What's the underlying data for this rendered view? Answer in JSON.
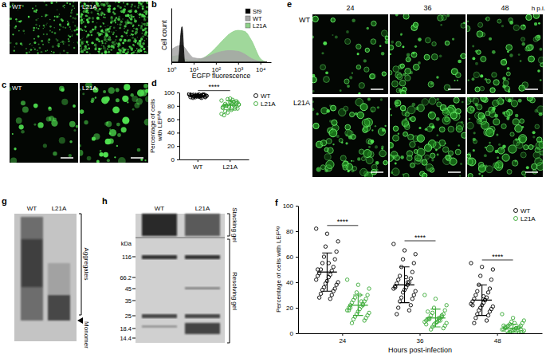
{
  "panel_labels": [
    "a",
    "b",
    "c",
    "d",
    "e",
    "f",
    "g",
    "h"
  ],
  "images": {
    "a": {
      "labels": [
        "WT",
        "L21A"
      ]
    },
    "c": {
      "labels": [
        "WT",
        "L21A"
      ]
    },
    "e": {
      "columns": [
        "24",
        "36",
        "48"
      ],
      "unit": "h p.i.",
      "rows": [
        "WT",
        "L21A"
      ]
    },
    "g": {
      "lanes": [
        "WT",
        "L21A"
      ],
      "labels": [
        "Aggregates",
        "Monomer"
      ]
    },
    "h": {
      "lanes": [
        "WT",
        "L21A"
      ],
      "unit": "kDa",
      "markers": [
        116,
        66.2,
        45,
        35,
        25,
        18.4,
        14.4
      ],
      "regions": [
        "Stacking gel",
        "Resolving gel"
      ]
    }
  },
  "chart_data": [
    {
      "type": "area",
      "xlabel": "EGFP fluorescence",
      "ylabel": "Cell count",
      "x": [
        1,
        2,
        3,
        4,
        6,
        10,
        20,
        40,
        100,
        200,
        400,
        1000,
        2000,
        4000,
        10000,
        20000
      ],
      "series": [
        {
          "name": "Sf9",
          "color": "#000000",
          "values": [
            0,
            0,
            98,
            0,
            0,
            0,
            0,
            0,
            0,
            0,
            0,
            0,
            0,
            0,
            0,
            0
          ]
        },
        {
          "name": "WT",
          "color": "#a6a6a6",
          "values": [
            35,
            45,
            47,
            40,
            25,
            12,
            10,
            15,
            25,
            30,
            32,
            30,
            22,
            10,
            2,
            0
          ]
        },
        {
          "name": "L21A",
          "color": "#8fd18a",
          "values": [
            15,
            18,
            15,
            10,
            6,
            5,
            8,
            18,
            40,
            60,
            78,
            88,
            85,
            60,
            10,
            0
          ]
        }
      ],
      "log": "x",
      "xlim": [
        1,
        30000
      ],
      "xticks": [
        {
          "value": 1,
          "label": "10⁰"
        },
        {
          "value": 10,
          "label": "10¹"
        },
        {
          "value": 100,
          "label": "10²"
        },
        {
          "value": 1000,
          "label": "10³"
        },
        {
          "value": 10000,
          "label": "10⁴"
        }
      ],
      "ylim": [
        0,
        150
      ],
      "tick_labels": "x",
      "legend": "upper right"
    },
    {
      "type": "scatter",
      "ylabel": [
        "Percentage of cells",
        "with LEFᴬᵍ"
      ],
      "categories": [
        "WT",
        "L21A"
      ],
      "series": [
        {
          "name": "WT",
          "color": "#000000",
          "values": [
            [
              97,
              96,
              95,
              98,
              94,
              93,
              96,
              95,
              97,
              94,
              92,
              96,
              95,
              93,
              97,
              98,
              94,
              95,
              96,
              93,
              95,
              97,
              94,
              96,
              92,
              95,
              98,
              93,
              96,
              94
            ],
            null
          ],
          "mean": [
            95,
            null
          ],
          "error": [
            2,
            null
          ]
        },
        {
          "name": "L21A",
          "color": "#39a935",
          "values": [
            null,
            [
              88,
              85,
              82,
              79,
              76,
              90,
              84,
              81,
              78,
              72,
              86,
              80,
              83,
              77,
              74,
              68,
              91,
              82,
              79,
              85,
              70,
              87,
              80,
              76,
              83,
              81,
              66,
              89,
              78,
              84
            ]
          ],
          "mean": [
            null,
            81
          ],
          "error": [
            null,
            7
          ]
        }
      ],
      "ylim": [
        0,
        100
      ],
      "yticks": [
        0,
        20,
        40,
        60,
        80,
        100
      ],
      "legend": "right",
      "marker": "open-circle",
      "annotations": [
        "****"
      ]
    },
    {
      "type": "scatter",
      "ylabel": "Percentage of cells with LEFᴬᵍ",
      "xlabel": "Hours post-infection",
      "categories": [
        "24",
        "36",
        "48"
      ],
      "series": [
        {
          "name": "WT",
          "color": "#000000",
          "values": [
            [
              82,
              78,
              72,
              68,
              64,
              60,
              58,
              55,
              52,
              50,
              49,
              47,
              46,
              45,
              44,
              42,
              41,
              40,
              39,
              38,
              36,
              35,
              34,
              33,
              31,
              30,
              28,
              27,
              50,
              55
            ],
            [
              70,
              65,
              62,
              58,
              55,
              52,
              48,
              45,
              43,
              42,
              40,
              39,
              38,
              37,
              36,
              35,
              34,
              33,
              32,
              30,
              28,
              27,
              25,
              22,
              20,
              18,
              15,
              40,
              36,
              44
            ],
            [
              55,
              52,
              50,
              45,
              42,
              38,
              35,
              33,
              32,
              30,
              28,
              27,
              26,
              25,
              24,
              23,
              22,
              21,
              20,
              19,
              18,
              17,
              15,
              14,
              12,
              10,
              8,
              26,
              22,
              29
            ]
          ],
          "mean": [
            48,
            38,
            26
          ],
          "error": [
            15,
            14,
            12
          ]
        },
        {
          "name": "L21A",
          "color": "#39a935",
          "values": [
            [
              42,
              38,
              35,
              32,
              30,
              28,
              27,
              26,
              25,
              24,
              23,
              22,
              21,
              20,
              19,
              18,
              17,
              16,
              15,
              14,
              13,
              12,
              11,
              10,
              8,
              22,
              20,
              25,
              18,
              30
            ],
            [
              30,
              27,
              22,
              20,
              18,
              16,
              15,
              14,
              13,
              12,
              12,
              11,
              10,
              10,
              9,
              9,
              8,
              8,
              7,
              6,
              5,
              4,
              3,
              14,
              11,
              10,
              17,
              12,
              7,
              9
            ],
            [
              15,
              12,
              10,
              9,
              8,
              7,
              6,
              6,
              5,
              5,
              4,
              4,
              4,
              3,
              3,
              3,
              2,
              2,
              2,
              1,
              1,
              1,
              0,
              0,
              2,
              3,
              5,
              4,
              6,
              8
            ]
          ],
          "mean": [
            22,
            12,
            4
          ],
          "error": [
            8,
            7,
            3
          ]
        }
      ],
      "ylim": [
        0,
        100
      ],
      "yticks": [
        0,
        20,
        40,
        60,
        80,
        100
      ],
      "legend": "upper right",
      "marker": "open-circle",
      "annotations": [
        "****",
        "****",
        "****"
      ]
    }
  ]
}
